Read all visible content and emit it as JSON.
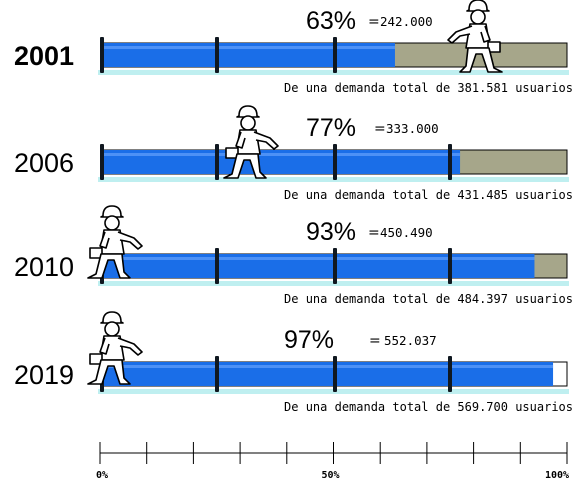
{
  "chart_data": {
    "type": "bar",
    "categories": [
      "2001",
      "2006",
      "2010",
      "2019"
    ],
    "values": [
      63,
      77,
      93,
      97
    ],
    "value_labels": [
      "63%",
      "77%",
      "93%",
      "97%"
    ],
    "users_served": [
      "242.000",
      "333.000",
      "450.490",
      "552.037"
    ],
    "demand_text": [
      "De una demanda total de 381.581 usuarios",
      "De una demanda total de 431.485 usuarios",
      "De una demanda total de 484.397 usuarios",
      "De una demanda total de 569.700 usuarios"
    ],
    "bold_category": "2001",
    "ylim": [
      0,
      100
    ],
    "axis_tick_labels": [
      "0%",
      "50%",
      "100%"
    ],
    "colors": {
      "filled": "#1a6ee8",
      "remaining": "#a6a68a",
      "remaining_2019": "#ffffff",
      "underline": "#bfeff0"
    },
    "icons": [
      "worker-icon"
    ]
  }
}
